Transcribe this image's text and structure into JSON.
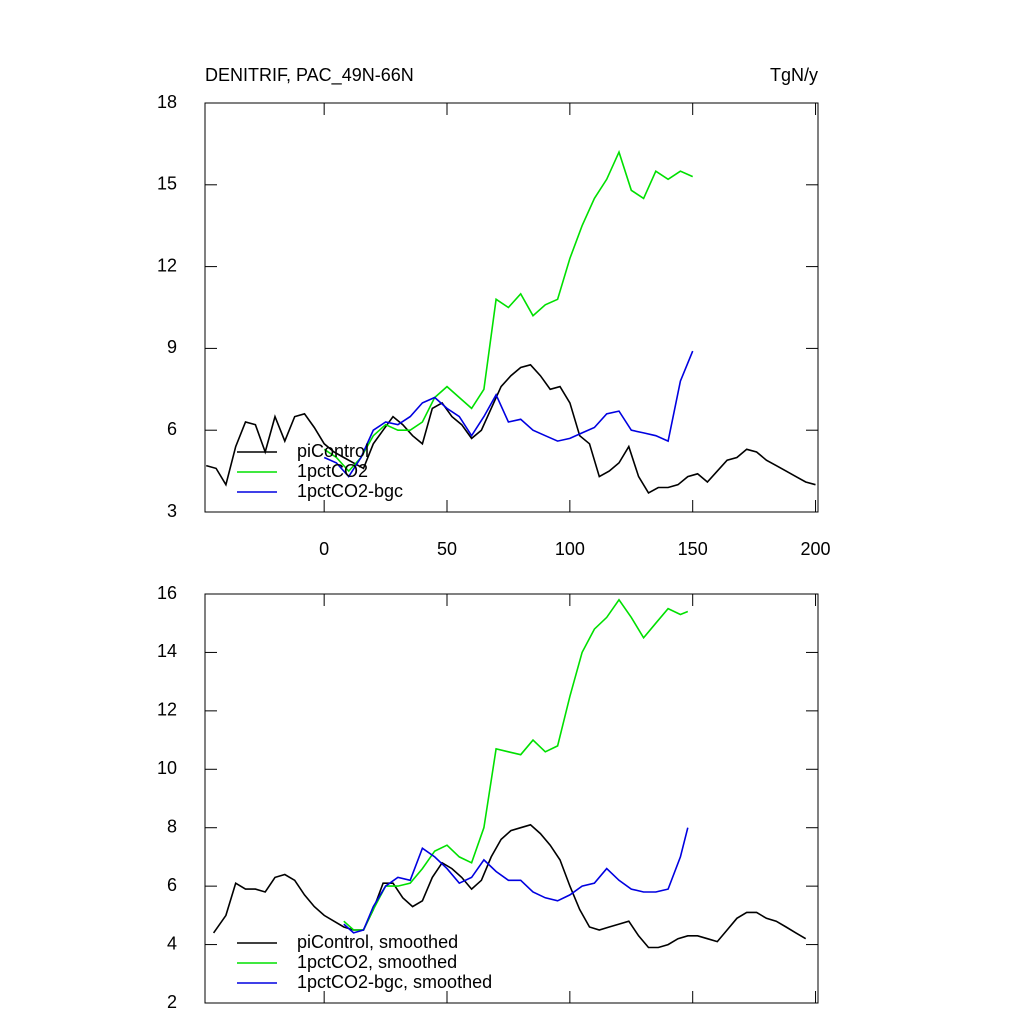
{
  "chart_data": [
    {
      "type": "line",
      "title": "DENITRIF, PAC_49N-66N",
      "units": "TgN/y",
      "xlim": [
        -48.5,
        201
      ],
      "xticks": [
        0,
        50,
        100,
        150,
        200
      ],
      "xticklabels": true,
      "ylim": [
        3,
        18
      ],
      "yticks": [
        3,
        6,
        9,
        12,
        15,
        18
      ],
      "legend": "lower left",
      "series": [
        {
          "name": "piControl",
          "color": "#000000",
          "x": [
            -48,
            -44,
            -40,
            -36,
            -32,
            -28,
            -24,
            -20,
            -16,
            -12,
            -8,
            -4,
            0,
            4,
            8,
            12,
            16,
            20,
            24,
            28,
            32,
            36,
            40,
            44,
            48,
            52,
            56,
            60,
            64,
            68,
            72,
            76,
            80,
            84,
            88,
            92,
            96,
            100,
            104,
            108,
            112,
            116,
            120,
            124,
            128,
            132,
            136,
            140,
            144,
            148,
            152,
            156,
            160,
            164,
            168,
            172,
            176,
            180,
            184,
            188,
            192,
            196,
            200
          ],
          "values": [
            4.7,
            4.6,
            4.0,
            5.4,
            6.3,
            6.2,
            5.2,
            6.5,
            5.6,
            6.5,
            6.6,
            6.1,
            5.5,
            5.2,
            5.0,
            4.8,
            4.6,
            5.5,
            6.0,
            6.5,
            6.2,
            5.8,
            5.5,
            6.8,
            7.0,
            6.5,
            6.2,
            5.7,
            6.0,
            6.8,
            7.6,
            8.0,
            8.3,
            8.4,
            8.0,
            7.5,
            7.6,
            7.0,
            5.8,
            5.5,
            4.3,
            4.5,
            4.8,
            5.4,
            4.3,
            3.7,
            3.9,
            3.9,
            4.0,
            4.3,
            4.4,
            4.1,
            4.5,
            4.9,
            5.0,
            5.3,
            5.2,
            4.9,
            4.7,
            4.5,
            4.3,
            4.1,
            4.0
          ]
        },
        {
          "name": "1pctCO2",
          "color": "#00e000",
          "x": [
            0,
            5,
            10,
            15,
            20,
            25,
            30,
            35,
            40,
            45,
            50,
            55,
            60,
            65,
            70,
            75,
            80,
            85,
            90,
            95,
            100,
            105,
            110,
            115,
            120,
            125,
            130,
            135,
            140,
            145,
            150
          ],
          "values": [
            5.3,
            5.0,
            4.5,
            5.0,
            5.8,
            6.2,
            6.0,
            6.0,
            6.3,
            7.2,
            7.6,
            7.2,
            6.8,
            7.5,
            10.8,
            10.5,
            11.0,
            10.2,
            10.6,
            10.8,
            12.3,
            13.5,
            14.5,
            15.2,
            16.2,
            14.8,
            14.5,
            15.5,
            15.2,
            15.5,
            15.3
          ]
        },
        {
          "name": "1pctCO2-bgc",
          "color": "#0000e0",
          "x": [
            0,
            5,
            10,
            15,
            20,
            25,
            30,
            35,
            40,
            45,
            50,
            55,
            60,
            65,
            70,
            75,
            80,
            85,
            90,
            95,
            100,
            105,
            110,
            115,
            120,
            125,
            130,
            135,
            140,
            145,
            150
          ],
          "values": [
            5.0,
            4.8,
            4.3,
            5.0,
            6.0,
            6.3,
            6.2,
            6.5,
            7.0,
            7.2,
            6.8,
            6.5,
            5.8,
            6.5,
            7.3,
            6.3,
            6.4,
            6.0,
            5.8,
            5.6,
            5.7,
            5.9,
            6.1,
            6.6,
            6.7,
            6.0,
            5.9,
            5.8,
            5.6,
            7.8,
            8.9
          ]
        }
      ]
    },
    {
      "type": "line",
      "xlim": [
        -48.5,
        201
      ],
      "xticks": [
        0,
        50,
        100,
        150,
        200
      ],
      "xticklabels": false,
      "ylim": [
        2,
        16
      ],
      "yticks": [
        2,
        4,
        6,
        8,
        10,
        12,
        14,
        16
      ],
      "legend": "lower left",
      "series": [
        {
          "name": "piControl, smoothed",
          "color": "#000000",
          "x": [
            -45,
            -40,
            -36,
            -32,
            -28,
            -24,
            -20,
            -16,
            -12,
            -8,
            -4,
            0,
            4,
            8,
            12,
            16,
            20,
            24,
            28,
            32,
            36,
            40,
            44,
            48,
            52,
            56,
            60,
            64,
            68,
            72,
            76,
            80,
            84,
            88,
            92,
            96,
            100,
            104,
            108,
            112,
            116,
            120,
            124,
            128,
            132,
            136,
            140,
            144,
            148,
            152,
            156,
            160,
            164,
            168,
            172,
            176,
            180,
            184,
            188,
            192,
            196
          ],
          "values": [
            4.4,
            5.0,
            6.1,
            5.9,
            5.9,
            5.8,
            6.3,
            6.4,
            6.2,
            5.7,
            5.3,
            5.0,
            4.8,
            4.6,
            4.5,
            4.5,
            5.2,
            6.1,
            6.1,
            5.6,
            5.3,
            5.5,
            6.3,
            6.8,
            6.6,
            6.3,
            5.9,
            6.2,
            7.0,
            7.6,
            7.9,
            8.0,
            8.1,
            7.8,
            7.4,
            6.9,
            6.0,
            5.2,
            4.6,
            4.5,
            4.6,
            4.7,
            4.8,
            4.3,
            3.9,
            3.9,
            4.0,
            4.2,
            4.3,
            4.3,
            4.2,
            4.1,
            4.5,
            4.9,
            5.1,
            5.1,
            4.9,
            4.8,
            4.6,
            4.4,
            4.2
          ]
        },
        {
          "name": "1pctCO2, smoothed",
          "color": "#00e000",
          "x": [
            8,
            12,
            16,
            20,
            25,
            30,
            35,
            40,
            45,
            50,
            55,
            60,
            65,
            70,
            75,
            80,
            85,
            90,
            95,
            100,
            105,
            110,
            115,
            120,
            125,
            130,
            135,
            140,
            145,
            148
          ],
          "values": [
            4.8,
            4.5,
            4.5,
            5.2,
            6.0,
            6.0,
            6.1,
            6.6,
            7.2,
            7.4,
            7.0,
            6.8,
            8.0,
            10.7,
            10.6,
            10.5,
            11.0,
            10.6,
            10.8,
            12.5,
            14.0,
            14.8,
            15.2,
            15.8,
            15.2,
            14.5,
            15.0,
            15.5,
            15.3,
            15.4
          ]
        },
        {
          "name": "1pctCO2-bgc, smoothed",
          "color": "#0000e0",
          "x": [
            8,
            12,
            16,
            20,
            25,
            30,
            35,
            40,
            45,
            50,
            55,
            60,
            65,
            70,
            75,
            80,
            85,
            90,
            95,
            100,
            105,
            110,
            115,
            120,
            125,
            130,
            135,
            140,
            145,
            148
          ],
          "values": [
            4.7,
            4.4,
            4.5,
            5.3,
            6.0,
            6.3,
            6.2,
            7.3,
            7.0,
            6.6,
            6.1,
            6.3,
            6.9,
            6.5,
            6.2,
            6.2,
            5.8,
            5.6,
            5.5,
            5.7,
            6.0,
            6.1,
            6.6,
            6.2,
            5.9,
            5.8,
            5.8,
            5.9,
            7.0,
            8.0
          ]
        }
      ]
    }
  ]
}
